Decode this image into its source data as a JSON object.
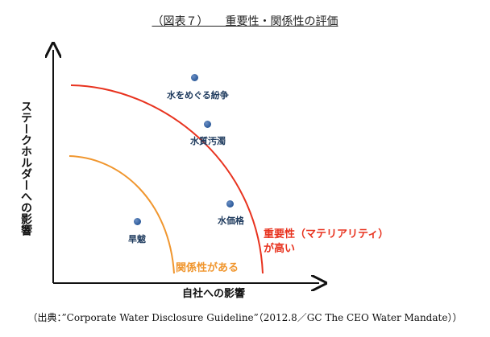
{
  "title": "（図表７）　　重要性・関係性の評価",
  "y_axis_label": "ステークホルダーへの影響",
  "x_axis_label": "自社への影響",
  "curves": {
    "outer_label_line1": "重要性（マテリアリティ）",
    "outer_label_line2": "が高い",
    "outer_color": "#e8331f",
    "inner_label": "関係性がある",
    "inner_color": "#f0962e"
  },
  "items": [
    {
      "label": "水をめぐる紛争"
    },
    {
      "label": "水質汚濁"
    },
    {
      "label": "水価格"
    },
    {
      "label": "旱魃"
    }
  ],
  "dot_color": "#2c5a9a",
  "source": "（出典：”Corporate Water Disclosure Guideline”（2012.8／GC The CEO Water Mandate））"
}
